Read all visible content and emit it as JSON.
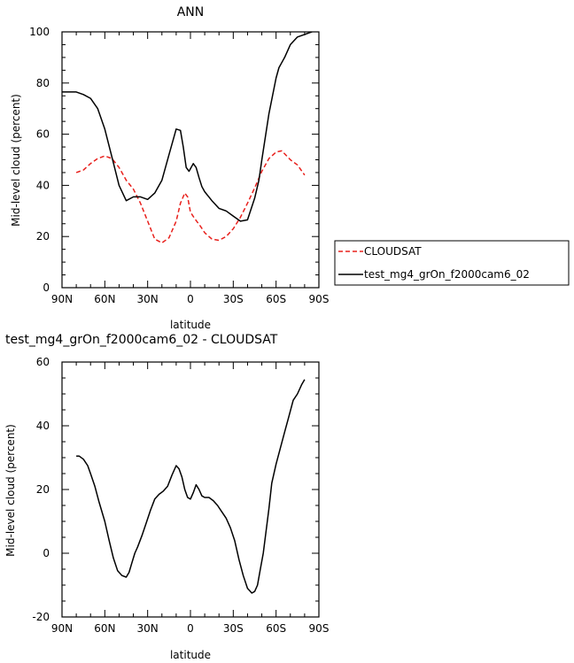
{
  "chart_data": [
    {
      "type": "line",
      "title": "ANN",
      "xlabel": "latitude",
      "ylabel": "Mid-level cloud (percent)",
      "xlim": [
        90,
        -90
      ],
      "ylim": [
        0,
        100
      ],
      "xticks": [
        90,
        60,
        30,
        0,
        -30,
        -60,
        -90
      ],
      "xtick_labels": [
        "90N",
        "60N",
        "30N",
        "0",
        "30S",
        "60S",
        "90S"
      ],
      "yticks": [
        0,
        20,
        40,
        60,
        80,
        100
      ],
      "ytick_labels": [
        "0",
        "20",
        "40",
        "60",
        "80",
        "100"
      ],
      "legend_position": "right",
      "series": [
        {
          "name": "CLOUDSAT",
          "color": "#e8201c",
          "dash": "dashed",
          "x": [
            80,
            75,
            70,
            65,
            60,
            55,
            50,
            45,
            40,
            35,
            30,
            25,
            20,
            15,
            10,
            7,
            4,
            2,
            0,
            -3,
            -7,
            -10,
            -15,
            -20,
            -25,
            -30,
            -35,
            -40,
            -45,
            -50,
            -55,
            -60,
            -64,
            -70,
            -75,
            -80
          ],
          "y": [
            45,
            46,
            48.5,
            50.5,
            51.5,
            50.5,
            47,
            42,
            38.5,
            33,
            26,
            19,
            17.5,
            19.5,
            26,
            33,
            37,
            35.5,
            29.5,
            27,
            24,
            21.5,
            19,
            18.5,
            20,
            23,
            27.5,
            33,
            39,
            45.5,
            50.5,
            53,
            53.5,
            50,
            48,
            44
          ]
        },
        {
          "name": "test_mg4_grOn_f2000cam6_02",
          "color": "#000000",
          "dash": "solid",
          "x": [
            90,
            85,
            80,
            75,
            70,
            65,
            60,
            55,
            50,
            45,
            40,
            35,
            30,
            25,
            20,
            15,
            10,
            7,
            5,
            3,
            1,
            0,
            -2,
            -4,
            -6,
            -8,
            -10,
            -15,
            -20,
            -25,
            -30,
            -35,
            -40,
            -45,
            -48,
            -50,
            -55,
            -60,
            -62,
            -64,
            -66,
            -70,
            -75,
            -80,
            -85,
            -90
          ],
          "y": [
            76.5,
            76.5,
            76.5,
            75.5,
            74,
            70,
            62,
            51,
            40,
            34,
            35.5,
            35.5,
            34.5,
            37,
            42,
            52,
            62,
            61.5,
            55,
            47,
            45.5,
            46.5,
            48.5,
            47,
            43,
            39.5,
            37.5,
            34,
            31,
            30,
            28,
            26,
            26.5,
            35,
            42,
            50,
            68,
            82,
            86,
            88,
            90,
            95,
            98,
            99,
            100,
            101
          ]
        }
      ]
    },
    {
      "type": "line",
      "title": "test_mg4_grOn_f2000cam6_02 - CLOUDSAT",
      "xlabel": "latitude",
      "ylabel": "Mid-level cloud (percent)",
      "xlim": [
        90,
        -90
      ],
      "ylim": [
        -20,
        60
      ],
      "xticks": [
        90,
        60,
        30,
        0,
        -30,
        -60,
        -90
      ],
      "xtick_labels": [
        "90N",
        "60N",
        "30N",
        "0",
        "30S",
        "60S",
        "90S"
      ],
      "yticks": [
        -20,
        0,
        20,
        40,
        60
      ],
      "ytick_labels": [
        "-20",
        "0",
        "20",
        "40",
        "60"
      ],
      "series": [
        {
          "color": "#000000",
          "dash": "solid",
          "x": [
            80,
            78,
            75,
            72,
            70,
            67,
            64,
            60,
            57,
            54,
            51,
            48,
            45,
            43,
            41,
            39,
            37,
            34,
            31,
            28,
            25,
            22,
            19,
            16,
            13,
            10,
            8,
            6,
            4,
            2,
            0,
            -2,
            -4,
            -6,
            -8,
            -10,
            -13,
            -16,
            -19,
            -22,
            -25,
            -28,
            -31,
            -34,
            -37,
            -40,
            -43,
            -45,
            -47,
            -49,
            -51,
            -53,
            -55,
            -57,
            -60,
            -63,
            -66,
            -69,
            -72,
            -75,
            -78,
            -80
          ],
          "y": [
            30.5,
            30.5,
            29.5,
            27.5,
            25,
            21,
            16,
            10,
            4,
            -1.5,
            -5.5,
            -7,
            -7.5,
            -6,
            -3,
            0,
            2,
            5.5,
            9.5,
            13.5,
            17,
            18.5,
            19.5,
            21,
            24.5,
            27.5,
            26.5,
            24,
            20,
            17.5,
            17,
            19,
            21.5,
            20,
            18,
            17.5,
            17.5,
            16.5,
            15,
            13,
            11,
            8,
            4,
            -2,
            -7,
            -11,
            -12.5,
            -12,
            -10,
            -5,
            0,
            7,
            14,
            22,
            28,
            33,
            38,
            43,
            48,
            50,
            53,
            54.5
          ]
        }
      ]
    }
  ]
}
